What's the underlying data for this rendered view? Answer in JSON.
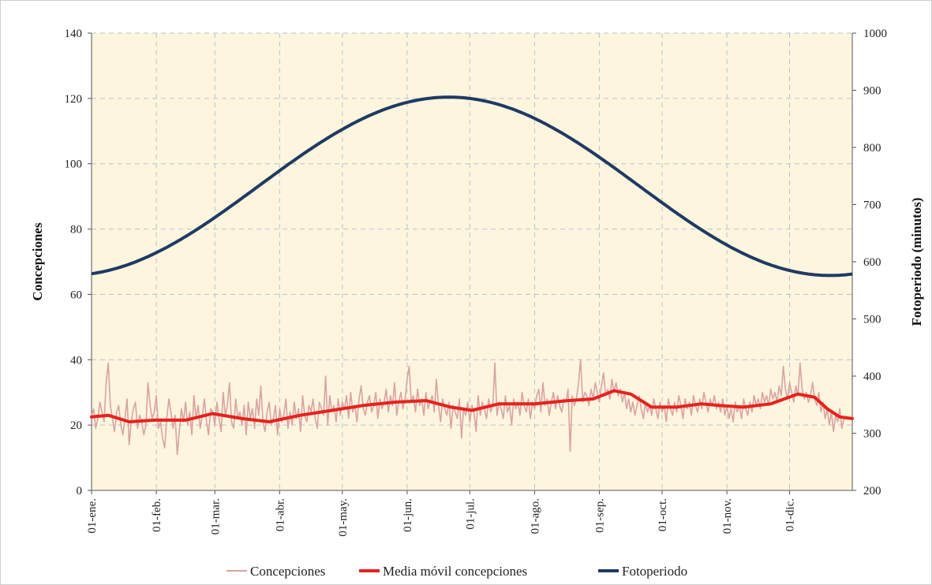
{
  "chart_data": {
    "type": "line",
    "title": "",
    "ylabel_left": "Concepciones",
    "ylabel_right": "Fotoperiodo (minutos)",
    "ylim_left": [
      0,
      140
    ],
    "yticks_left": [
      "0",
      "20",
      "40",
      "60",
      "80",
      "100",
      "120",
      "140"
    ],
    "ylim_right": [
      200,
      1000
    ],
    "yticks_right": [
      "200",
      "300",
      "400",
      "500",
      "600",
      "700",
      "800",
      "900",
      "1000"
    ],
    "x_domain_days": [
      0,
      364
    ],
    "x_tick_labels": [
      "01-ene.",
      "01-feb.",
      "01-mar.",
      "01-abr.",
      "01-may.",
      "01-jun.",
      "01-jul.",
      "01-ago.",
      "01-sep.",
      "01-oct.",
      "01-nov.",
      "01-dic."
    ],
    "x_tick_days": [
      0,
      31,
      59,
      90,
      120,
      151,
      181,
      212,
      243,
      273,
      304,
      334
    ],
    "grid": true,
    "legend_position": "bottom",
    "series": [
      {
        "name": "Concepciones",
        "axis": "left",
        "color": "#d9a3a3",
        "daily_values": [
          23,
          25,
          19,
          22,
          27,
          24,
          21,
          33,
          39,
          26,
          22,
          18,
          24,
          26,
          20,
          17,
          22,
          28,
          14,
          21,
          25,
          27,
          19,
          23,
          21,
          17,
          20,
          33,
          26,
          22,
          24,
          29,
          19,
          21,
          16,
          13,
          22,
          28,
          24,
          19,
          23,
          11,
          18,
          25,
          21,
          27,
          20,
          24,
          17,
          29,
          22,
          26,
          19,
          23,
          28,
          21,
          17,
          25,
          24,
          20,
          27,
          22,
          18,
          30,
          23,
          26,
          33,
          21,
          19,
          28,
          22,
          24,
          20,
          26,
          17,
          27,
          22,
          25,
          19,
          28,
          23,
          32,
          21,
          18,
          24,
          27,
          20,
          22,
          26,
          17,
          25,
          21,
          23,
          28,
          19,
          24,
          20,
          27,
          22,
          25,
          18,
          29,
          23,
          21,
          26,
          24,
          28,
          22,
          19,
          27,
          25,
          23,
          35,
          20,
          29,
          24,
          26,
          21,
          28,
          23,
          27,
          25,
          29,
          22,
          30,
          24,
          26,
          21,
          28,
          32,
          25,
          23,
          27,
          29,
          24,
          26,
          30,
          22,
          28,
          25,
          27,
          31,
          24,
          29,
          26,
          33,
          23,
          27,
          30,
          25,
          28,
          34,
          38,
          27,
          29,
          24,
          31,
          26,
          28,
          23,
          30,
          25,
          27,
          29,
          24,
          34,
          26,
          21,
          28,
          25,
          23,
          27,
          19,
          26,
          24,
          22,
          28,
          16,
          25,
          23,
          27,
          21,
          26,
          24,
          18,
          29,
          23,
          27,
          25,
          22,
          28,
          24,
          26,
          39,
          23,
          27,
          25,
          22,
          29,
          24,
          26,
          20,
          28,
          25,
          27,
          23,
          30,
          26,
          24,
          28,
          22,
          27,
          25,
          29,
          31,
          24,
          33,
          26,
          28,
          23,
          27,
          30,
          25,
          29,
          26,
          24,
          28,
          27,
          31,
          12,
          29,
          26,
          28,
          33,
          40,
          27,
          30,
          29,
          26,
          31,
          28,
          33,
          30,
          27,
          32,
          36,
          29,
          31,
          28,
          34,
          30,
          33,
          29,
          31,
          27,
          30,
          25,
          28,
          24,
          27,
          23,
          26,
          29,
          25,
          22,
          27,
          24,
          26,
          23,
          28,
          25,
          22,
          27,
          24,
          26,
          21,
          28,
          25,
          23,
          27,
          24,
          29,
          26,
          22,
          28,
          25,
          27,
          23,
          29,
          26,
          24,
          28,
          25,
          30,
          27,
          24,
          28,
          26,
          29,
          25,
          27,
          24,
          28,
          23,
          26,
          22,
          25,
          21,
          27,
          24,
          26,
          22,
          28,
          25,
          23,
          27,
          24,
          29,
          26,
          28,
          25,
          30,
          27,
          29,
          26,
          31,
          28,
          30,
          27,
          32,
          29,
          38,
          31,
          28,
          33,
          30,
          27,
          32,
          29,
          39,
          31,
          28,
          30,
          27,
          29,
          33,
          28,
          26,
          30,
          24,
          27,
          22,
          25,
          20,
          24,
          18,
          23,
          21,
          25,
          19,
          22
        ]
      },
      {
        "name": "Media  móvil concepciones",
        "axis": "left",
        "color": "#e8211e",
        "points": [
          [
            0,
            22.5
          ],
          [
            8,
            23
          ],
          [
            18,
            21
          ],
          [
            30,
            21.5
          ],
          [
            45,
            21.5
          ],
          [
            58,
            23.5
          ],
          [
            72,
            22
          ],
          [
            85,
            21
          ],
          [
            100,
            23
          ],
          [
            115,
            24.5
          ],
          [
            130,
            26
          ],
          [
            145,
            27
          ],
          [
            160,
            27.5
          ],
          [
            172,
            25.5
          ],
          [
            182,
            24.5
          ],
          [
            195,
            26.5
          ],
          [
            212,
            26.5
          ],
          [
            228,
            27.5
          ],
          [
            240,
            28
          ],
          [
            250,
            30.5
          ],
          [
            258,
            29.5
          ],
          [
            268,
            25.5
          ],
          [
            280,
            25.5
          ],
          [
            292,
            26.5
          ],
          [
            300,
            26
          ],
          [
            312,
            25.5
          ],
          [
            325,
            26.5
          ],
          [
            338,
            29.5
          ],
          [
            346,
            28.5
          ],
          [
            352,
            25
          ],
          [
            358,
            22.5
          ],
          [
            364,
            22
          ]
        ]
      },
      {
        "name": "Fotoperiodo",
        "axis": "right",
        "color": "#1f3a63",
        "mean_minutes": 732,
        "amplitude_minutes": 156,
        "peak_day": 171
      }
    ]
  }
}
